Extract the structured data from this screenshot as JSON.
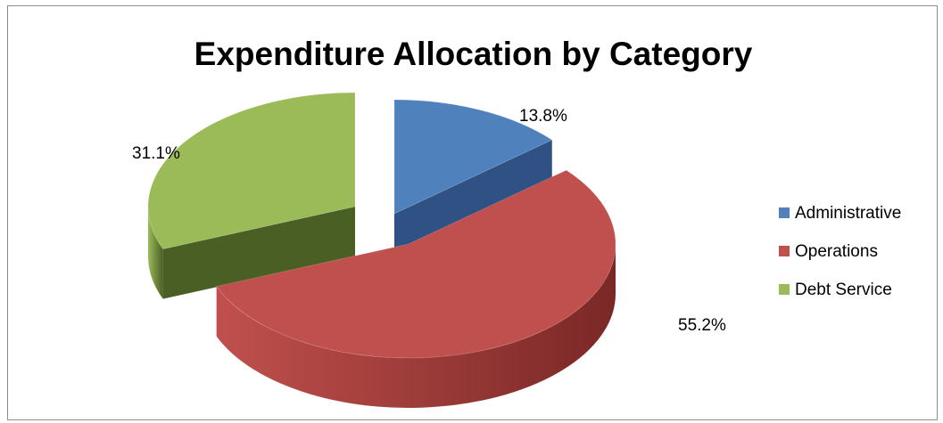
{
  "chart_data": {
    "type": "pie",
    "title": "Expenditure Allocation by Category",
    "categories": [
      "Administrative",
      "Operations",
      "Debt Service"
    ],
    "values": [
      13.8,
      55.2,
      31.1
    ],
    "labels": [
      "13.8%",
      "55.2%",
      "31.1%"
    ],
    "colors": [
      "#4f81bd",
      "#c0504d",
      "#9bbb59"
    ],
    "side_colors": [
      "#2f5183",
      "#7a2826",
      "#4a5f24"
    ],
    "legend_position": "right",
    "style": "3d-exploded"
  }
}
